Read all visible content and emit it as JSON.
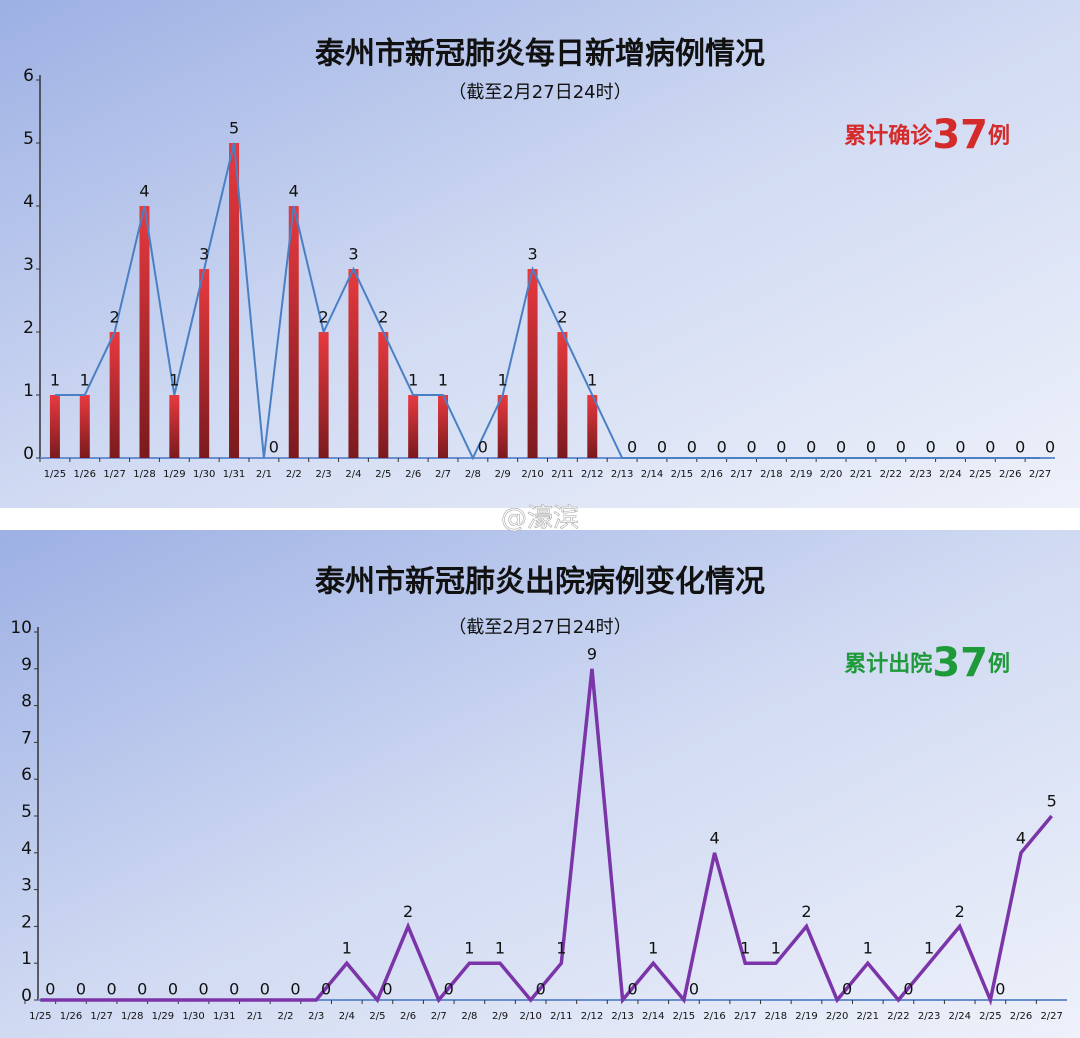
{
  "watermark": "@濠滨",
  "chart_data": [
    {
      "type": "bar",
      "title": "泰州市新冠肺炎每日新增病例情况",
      "subtitle": "（截至2月27日24时）",
      "annotation": {
        "prefix": "累计确诊",
        "number": 37,
        "suffix": "例",
        "color": "#d42a2a"
      },
      "categories": [
        "1/25",
        "1/26",
        "1/27",
        "1/28",
        "1/29",
        "1/30",
        "1/31",
        "2/1",
        "2/2",
        "2/3",
        "2/4",
        "2/5",
        "2/6",
        "2/7",
        "2/8",
        "2/9",
        "2/10",
        "2/11",
        "2/12",
        "2/13",
        "2/14",
        "2/15",
        "2/16",
        "2/17",
        "2/18",
        "2/19",
        "2/20",
        "2/21",
        "2/22",
        "2/23",
        "2/24",
        "2/25",
        "2/26",
        "2/27"
      ],
      "values": [
        1,
        1,
        2,
        4,
        1,
        3,
        5,
        0,
        4,
        2,
        3,
        2,
        1,
        1,
        0,
        1,
        3,
        2,
        1,
        0,
        0,
        0,
        0,
        0,
        0,
        0,
        0,
        0,
        0,
        0,
        0,
        0,
        0,
        0
      ],
      "color": "#e83a3f",
      "line_color": "#4a7fc4",
      "ylim": [
        0,
        6
      ],
      "yticks": [
        0,
        1,
        2,
        3,
        4,
        5,
        6
      ]
    },
    {
      "type": "line",
      "title": "泰州市新冠肺炎出院病例变化情况",
      "subtitle": "（截至2月27日24时）",
      "annotation": {
        "prefix": "累计出院",
        "number": 37,
        "suffix": "例",
        "color": "#1e9a3a"
      },
      "categories": [
        "1/25",
        "1/26",
        "1/27",
        "1/28",
        "1/29",
        "1/30",
        "1/31",
        "2/1",
        "2/2",
        "2/3",
        "2/4",
        "2/5",
        "2/6",
        "2/7",
        "2/8",
        "2/9",
        "2/10",
        "2/11",
        "2/12",
        "2/13",
        "2/14",
        "2/15",
        "2/16",
        "2/17",
        "2/18",
        "2/19",
        "2/20",
        "2/21",
        "2/22",
        "2/23",
        "2/24",
        "2/25",
        "2/26",
        "2/27"
      ],
      "values": [
        0,
        0,
        0,
        0,
        0,
        0,
        0,
        0,
        0,
        0,
        1,
        0,
        2,
        0,
        1,
        1,
        0,
        1,
        9,
        0,
        1,
        0,
        4,
        1,
        1,
        2,
        0,
        1,
        0,
        1,
        2,
        0,
        4,
        5
      ],
      "color": "#7b35a8",
      "ylim": [
        0,
        10
      ],
      "yticks": [
        0,
        1,
        2,
        3,
        4,
        5,
        6,
        7,
        8,
        9,
        10
      ]
    }
  ]
}
